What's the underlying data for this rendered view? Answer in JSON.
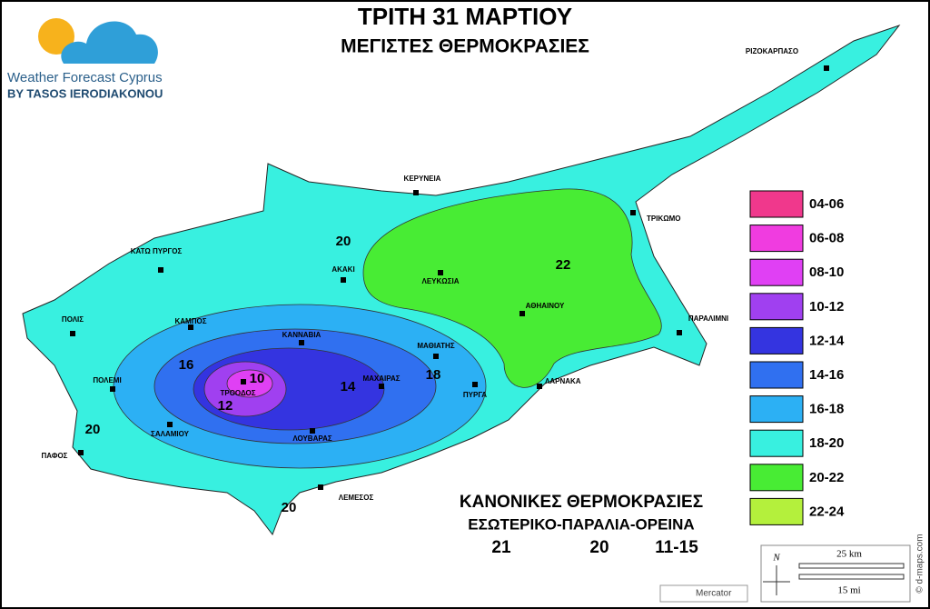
{
  "header": {
    "title": "ΤΡΙΤΗ 31 ΜΑΡΤΙΟΥ",
    "subtitle": "ΜΕΓΙΣΤΕΣ ΘΕΡΜΟΚΡΑΣΙΕΣ"
  },
  "logo": {
    "name": "Weather Forecast Cyprus",
    "byline": "BY TASOS IERODIAKONOU"
  },
  "towns": [
    "ΡΙΖΟΚΑΡΠΑΣΟ",
    "ΚΕΡΥΝΕΙΑ",
    "ΤΡΙΚΩΜΟ",
    "ΚΑΤΩ ΠΥΡΓΟΣ",
    "ΑΚΑΚΙ",
    "ΛΕΥΚΩΣΙΑ",
    "ΑΘΗΑΙΝΟΥ",
    "ΠΑΡΑΛΙΜΝΙ",
    "ΠΟΛΙΣ",
    "ΚΑΜΠΟΣ",
    "ΚΑΝΝΑΒΙΑ",
    "ΜΑΘΙΑΤΗΣ",
    "ΠΟΛΕΜΙ",
    "ΤΡΟΟΔΟΣ",
    "ΜΑΧΑΙΡΑΣ",
    "ΠΥΡΓΑ",
    "ΛΑΡΝΑΚΑ",
    "ΣΑΛΑΜΙΟΥ",
    "ΛΟΥΒΑΡΑΣ",
    "ΠΑΦΟΣ",
    "ΛΕΜΕΣΟΣ"
  ],
  "contour_labels": [
    20,
    22,
    16,
    10,
    12,
    14,
    18,
    20,
    20
  ],
  "legend": [
    {
      "label": "04-06",
      "color": "#f0388c"
    },
    {
      "label": "06-08",
      "color": "#f03ce0"
    },
    {
      "label": "08-10",
      "color": "#e040f4"
    },
    {
      "label": "10-12",
      "color": "#a040f0"
    },
    {
      "label": "12-14",
      "color": "#3434e0"
    },
    {
      "label": "14-16",
      "color": "#3070f0"
    },
    {
      "label": "16-18",
      "color": "#2cb0f4"
    },
    {
      "label": "18-20",
      "color": "#38f0e0"
    },
    {
      "label": "20-22",
      "color": "#48ec34"
    },
    {
      "label": "22-24",
      "color": "#b4f03c"
    }
  ],
  "normals": {
    "title": "ΚΑΝΟΝΙΚΕΣ ΘΕΡΜΟΚΡΑΣΙΕΣ",
    "subtitle": "ΕΣΩΤΕΡΙΚΟ-ΠΑΡΑΛΙΑ-ΟΡΕΙΝΑ",
    "values": [
      21,
      20,
      "11-15"
    ]
  },
  "scale": {
    "north": "N",
    "km": "25 km",
    "mi": "15 mi"
  },
  "projection": "Mercator",
  "credit": "© d-maps.com"
}
